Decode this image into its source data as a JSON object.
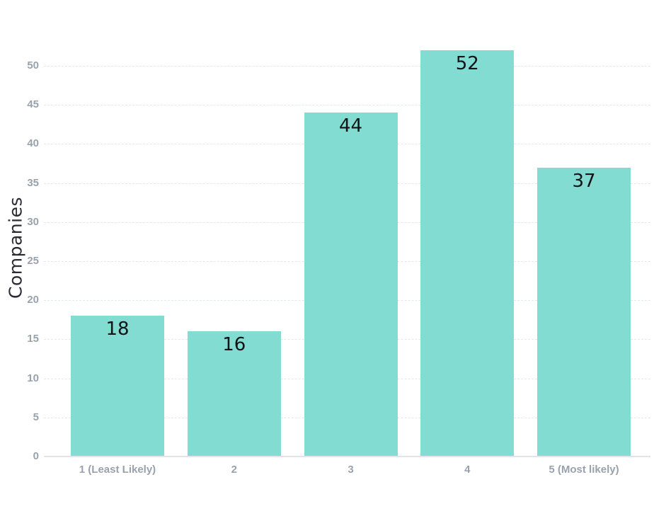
{
  "chart_data": {
    "type": "bar",
    "title": "",
    "xlabel": "",
    "ylabel": "Companies",
    "categories": [
      "1 (Least Likely)",
      "2",
      "3",
      "4",
      "5 (Most likely)"
    ],
    "values": [
      18,
      16,
      44,
      52,
      37
    ],
    "yticks": [
      0,
      5,
      10,
      15,
      20,
      25,
      30,
      35,
      40,
      45,
      50
    ],
    "ylim": [
      0,
      55
    ],
    "grid": true,
    "legend": "none",
    "colors": {
      "bar": "#82dcd2",
      "bar_value_label": "#121217",
      "axis_tick_text": "#99a2ac",
      "gridline": "#dfe9f1",
      "axis_line": "#dfe4eb",
      "ylabel_text": "#2b2b33",
      "background": "#ffffff"
    }
  }
}
